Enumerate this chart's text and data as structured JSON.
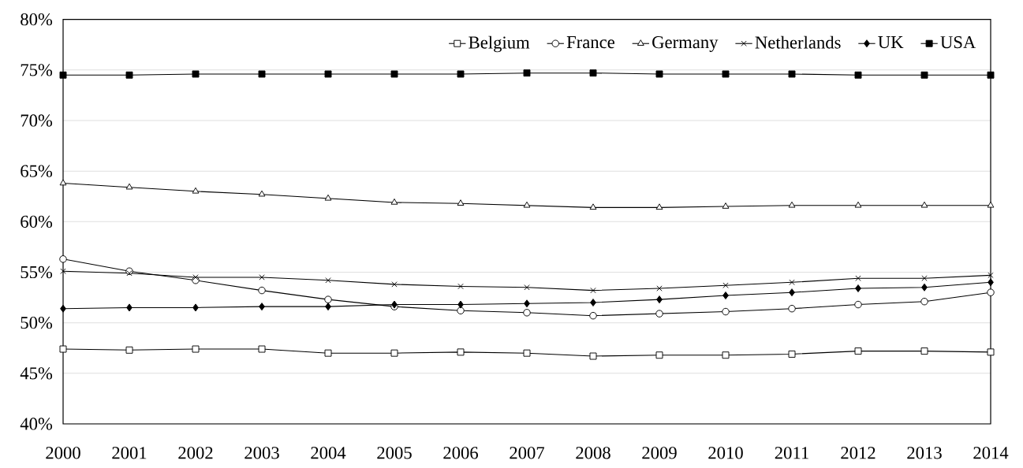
{
  "chart_data": {
    "type": "line",
    "categories": [
      "2000",
      "2001",
      "2002",
      "2003",
      "2004",
      "2005",
      "2006",
      "2007",
      "2008",
      "2009",
      "2010",
      "2011",
      "2012",
      "2013",
      "2014"
    ],
    "series": [
      {
        "name": "Belgium",
        "color": "#000000",
        "marker": "square",
        "colors": [
          "#ffffff",
          "#ffffff",
          "#ffffff",
          "#ffffff",
          "#ffffff",
          "#ffffff",
          "#ffffff",
          "#ffffff",
          "#ffffff",
          "#ffffff",
          "#ffffff",
          "#ffffff",
          "#ffffff",
          "#ffffff",
          "#ffffff"
        ],
        "values": [
          47.4,
          47.3,
          47.4,
          47.4,
          47.0,
          47.0,
          47.1,
          47.0,
          46.7,
          46.8,
          46.8,
          46.9,
          47.2,
          47.2,
          47.1
        ]
      },
      {
        "name": "France",
        "color": "#000000",
        "marker": "circle",
        "colors": [
          "#ffffff",
          "#ffffff",
          "#ffffff",
          "#ffffff",
          "#ffffff",
          "#ffffff",
          "#ffffff",
          "#ffffff",
          "#ffffff",
          "#ffffff",
          "#ffffff",
          "#ffffff",
          "#ffffff",
          "#ffffff",
          "#ffffff"
        ],
        "values": [
          56.3,
          55.1,
          54.2,
          53.2,
          52.3,
          51.6,
          51.2,
          51.0,
          50.7,
          50.9,
          51.1,
          51.4,
          51.8,
          52.1,
          53.0
        ]
      },
      {
        "name": "Germany",
        "color": "#000000",
        "marker": "triangle",
        "colors": [
          "#ffffff",
          "#ffffff",
          "#ffffff",
          "#ffffff",
          "#ffffff",
          "#ffffff",
          "#ffffff",
          "#ffffff",
          "#ffffff",
          "#ffffff",
          "#ffffff",
          "#ffffff",
          "#ffffff",
          "#ffffff",
          "#ffffff"
        ],
        "values": [
          63.8,
          63.4,
          63.0,
          62.7,
          62.3,
          61.9,
          61.8,
          61.6,
          61.4,
          61.4,
          61.5,
          61.6,
          61.6,
          61.6,
          61.6
        ]
      },
      {
        "name": "Netherlands",
        "color": "#000000",
        "marker": "cross",
        "values": [
          55.1,
          54.9,
          54.5,
          54.5,
          54.2,
          53.8,
          53.6,
          53.5,
          53.2,
          53.4,
          53.7,
          54.0,
          54.4,
          54.4,
          54.7
        ]
      },
      {
        "name": "UK",
        "color": "#000000",
        "marker": "diamond",
        "values": [
          51.4,
          51.5,
          51.5,
          51.6,
          51.6,
          51.8,
          51.8,
          51.9,
          52.0,
          52.3,
          52.7,
          53.0,
          53.4,
          53.5,
          54.0
        ]
      },
      {
        "name": "USA",
        "color": "#000000",
        "marker": "square",
        "values": [
          74.5,
          74.5,
          74.6,
          74.6,
          74.6,
          74.6,
          74.6,
          74.7,
          74.7,
          74.6,
          74.6,
          74.6,
          74.5,
          74.5,
          74.5
        ]
      }
    ],
    "ylim": [
      40,
      80
    ],
    "yticks": [
      {
        "value": 40,
        "label": "40%"
      },
      {
        "value": 45,
        "label": "45%"
      },
      {
        "value": 50,
        "label": "50%"
      },
      {
        "value": 55,
        "label": "55%"
      },
      {
        "value": 60,
        "label": "60%"
      },
      {
        "value": 65,
        "label": "65%"
      },
      {
        "value": 70,
        "label": "70%"
      },
      {
        "value": 75,
        "label": "75%"
      },
      {
        "value": 80,
        "label": "80%"
      }
    ],
    "grid": "y",
    "legend": "top right",
    "line_style": "solid"
  }
}
